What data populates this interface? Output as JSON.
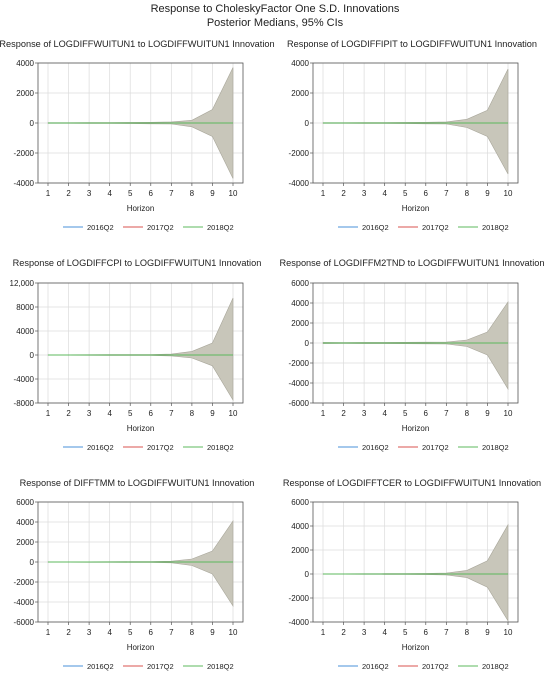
{
  "figure": {
    "title_line1": "Response to CholeskyFactor One S.D. Innovations",
    "title_line2": "Posterior Medians, 95% CIs"
  },
  "chart_data": [
    {
      "type": "line",
      "title": "Response of LOGDIFFWUITUN1 to LOGDIFFWUITUN1 Innovation",
      "xlabel": "Horizon",
      "x": [
        1,
        2,
        3,
        4,
        5,
        6,
        7,
        8,
        9,
        10
      ],
      "ylim": [
        -4000,
        4000
      ],
      "yticks": [
        -4000,
        -2000,
        0,
        2000,
        4000
      ],
      "ytick_labels": [
        "-4000",
        "-2000",
        "0",
        "2000",
        "4000"
      ],
      "band": {
        "upper": [
          20,
          18,
          25,
          30,
          40,
          50,
          70,
          180,
          900,
          3700
        ],
        "lower": [
          -20,
          -18,
          -25,
          -30,
          -40,
          -50,
          -70,
          -250,
          -900,
          -3700
        ]
      },
      "series": [
        {
          "name": "2016Q2",
          "values": [
            0,
            0,
            0,
            0,
            0,
            0,
            0,
            0,
            0,
            0
          ]
        },
        {
          "name": "2017Q2",
          "values": [
            0,
            0,
            0,
            0,
            0,
            0,
            0,
            0,
            0,
            0
          ]
        },
        {
          "name": "2018Q2",
          "values": [
            0,
            0,
            0,
            0,
            0,
            0,
            0,
            0,
            0,
            0
          ]
        }
      ]
    },
    {
      "type": "line",
      "title": "Response of LOGDIFFIPIT to LOGDIFFWUITUN1 Innovation",
      "xlabel": "Horizon",
      "x": [
        1,
        2,
        3,
        4,
        5,
        6,
        7,
        8,
        9,
        10
      ],
      "ylim": [
        -4000,
        4000
      ],
      "yticks": [
        -4000,
        -2000,
        0,
        2000,
        4000
      ],
      "ytick_labels": [
        "-4000",
        "-2000",
        "0",
        "2000",
        "4000"
      ],
      "band": {
        "upper": [
          20,
          20,
          30,
          35,
          40,
          50,
          70,
          250,
          850,
          3600
        ],
        "lower": [
          -20,
          -20,
          -30,
          -35,
          -40,
          -50,
          -70,
          -300,
          -900,
          -3400
        ]
      },
      "series": [
        {
          "name": "2016Q2",
          "values": [
            0,
            0,
            0,
            0,
            0,
            0,
            0,
            0,
            0,
            0
          ]
        },
        {
          "name": "2017Q2",
          "values": [
            0,
            0,
            0,
            0,
            0,
            0,
            0,
            0,
            0,
            0
          ]
        },
        {
          "name": "2018Q2",
          "values": [
            0,
            0,
            0,
            0,
            0,
            0,
            0,
            0,
            0,
            0
          ]
        }
      ]
    },
    {
      "type": "line",
      "title": "Response of LOGDIFFCPI to LOGDIFFWUITUN1 Innovation",
      "xlabel": "Horizon",
      "x": [
        1,
        2,
        3,
        4,
        5,
        6,
        7,
        8,
        9,
        10
      ],
      "ylim": [
        -8000,
        12000
      ],
      "yticks": [
        -8000,
        -4000,
        0,
        4000,
        8000,
        12000
      ],
      "ytick_labels": [
        "-8000",
        "-4000",
        "0",
        "4000",
        "8000",
        "12,000"
      ],
      "band": {
        "upper": [
          40,
          40,
          50,
          60,
          70,
          90,
          150,
          600,
          2000,
          9500
        ],
        "lower": [
          -40,
          -40,
          -50,
          -60,
          -70,
          -90,
          -150,
          -500,
          -1800,
          -7500
        ]
      },
      "series": [
        {
          "name": "2016Q2",
          "values": [
            0,
            0,
            0,
            0,
            0,
            0,
            0,
            0,
            0,
            0
          ]
        },
        {
          "name": "2017Q2",
          "values": [
            0,
            0,
            0,
            0,
            0,
            0,
            0,
            0,
            0,
            0
          ]
        },
        {
          "name": "2018Q2",
          "values": [
            0,
            0,
            0,
            0,
            0,
            0,
            0,
            0,
            0,
            0
          ]
        }
      ]
    },
    {
      "type": "line",
      "title": "Response of LOGDIFFM2TND to LOGDIFFWUITUN1 Innovation",
      "xlabel": "Horizon",
      "x": [
        1,
        2,
        3,
        4,
        5,
        6,
        7,
        8,
        9,
        10
      ],
      "ylim": [
        -6000,
        6000
      ],
      "yticks": [
        -6000,
        -4000,
        -2000,
        0,
        2000,
        4000,
        6000
      ],
      "ytick_labels": [
        "-6000",
        "-4000",
        "-2000",
        "0",
        "2000",
        "4000",
        "6000"
      ],
      "band": {
        "upper": [
          60,
          50,
          60,
          60,
          70,
          80,
          100,
          300,
          1100,
          4100
        ],
        "lower": [
          -60,
          -50,
          -60,
          -60,
          -70,
          -80,
          -100,
          -350,
          -1200,
          -4600
        ]
      },
      "series": [
        {
          "name": "2016Q2",
          "values": [
            0,
            0,
            0,
            0,
            0,
            0,
            0,
            0,
            0,
            0
          ]
        },
        {
          "name": "2017Q2",
          "values": [
            0,
            0,
            0,
            0,
            0,
            0,
            0,
            0,
            0,
            0
          ]
        },
        {
          "name": "2018Q2",
          "values": [
            0,
            0,
            0,
            0,
            0,
            0,
            0,
            0,
            0,
            0
          ]
        }
      ]
    },
    {
      "type": "line",
      "title": "Response of DIFFTMM to LOGDIFFWUITUN1 Innovation",
      "xlabel": "Horizon",
      "x": [
        1,
        2,
        3,
        4,
        5,
        6,
        7,
        8,
        9,
        10
      ],
      "ylim": [
        -6000,
        6000
      ],
      "yticks": [
        -6000,
        -4000,
        -2000,
        0,
        2000,
        4000,
        6000
      ],
      "ytick_labels": [
        "-6000",
        "-4000",
        "-2000",
        "0",
        "2000",
        "4000",
        "6000"
      ],
      "band": {
        "upper": [
          20,
          20,
          25,
          30,
          40,
          50,
          80,
          300,
          1100,
          4100
        ],
        "lower": [
          -20,
          -20,
          -25,
          -30,
          -40,
          -50,
          -80,
          -350,
          -1200,
          -4400
        ]
      },
      "series": [
        {
          "name": "2016Q2",
          "values": [
            0,
            0,
            0,
            0,
            0,
            0,
            0,
            0,
            0,
            0
          ]
        },
        {
          "name": "2017Q2",
          "values": [
            0,
            0,
            0,
            0,
            0,
            0,
            0,
            0,
            0,
            0
          ]
        },
        {
          "name": "2018Q2",
          "values": [
            0,
            0,
            0,
            0,
            0,
            0,
            0,
            0,
            0,
            0
          ]
        }
      ]
    },
    {
      "type": "line",
      "title": "Response of LOGDIFFTCER to LOGDIFFWUITUN1 Innovation",
      "xlabel": "Horizon",
      "x": [
        1,
        2,
        3,
        4,
        5,
        6,
        7,
        8,
        9,
        10
      ],
      "ylim": [
        -4000,
        6000
      ],
      "yticks": [
        -4000,
        -2000,
        0,
        2000,
        4000,
        6000
      ],
      "ytick_labels": [
        "-4000",
        "-2000",
        "0",
        "2000",
        "4000",
        "6000"
      ],
      "band": {
        "upper": [
          20,
          20,
          25,
          30,
          40,
          50,
          80,
          300,
          1100,
          4100
        ],
        "lower": [
          -20,
          -20,
          -25,
          -30,
          -40,
          -50,
          -80,
          -300,
          -1100,
          -3900
        ]
      },
      "series": [
        {
          "name": "2016Q2",
          "values": [
            0,
            0,
            0,
            0,
            0,
            0,
            0,
            0,
            0,
            0
          ]
        },
        {
          "name": "2017Q2",
          "values": [
            0,
            0,
            0,
            0,
            0,
            0,
            0,
            0,
            0,
            0
          ]
        },
        {
          "name": "2018Q2",
          "values": [
            0,
            0,
            0,
            0,
            0,
            0,
            0,
            0,
            0,
            0
          ]
        }
      ]
    }
  ],
  "colors": {
    "band_fill": "#c8c6ba",
    "band_edge": "#a8a69a",
    "2016Q2": "#4a90d9",
    "2017Q2": "#d9534f",
    "2018Q2": "#5cb85c",
    "grid": "#dcdcdc",
    "axis": "#555555"
  }
}
